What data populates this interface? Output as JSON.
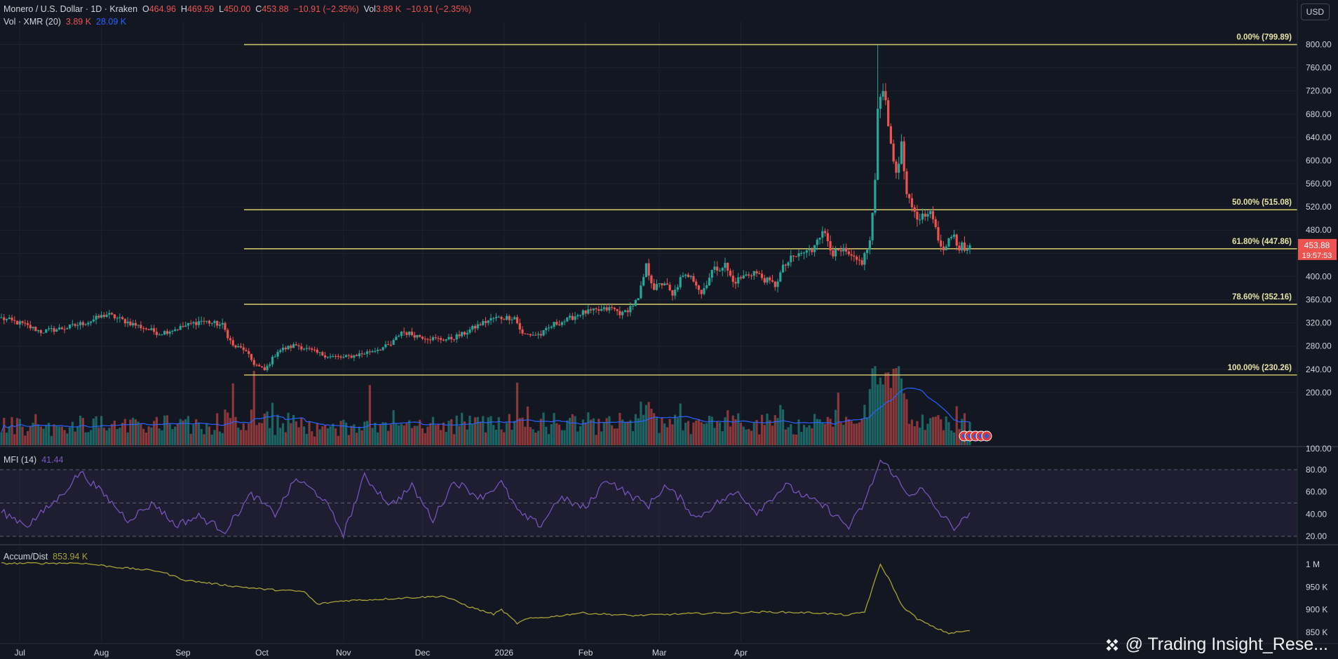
{
  "header": {
    "symbol": "Monero / U.S. Dollar · 1D · Kraken",
    "o_label": "O",
    "o": "464.96",
    "h_label": "H",
    "h": "469.59",
    "l_label": "L",
    "l": "450.00",
    "c_label": "C",
    "c": "453.88",
    "change": "−10.91 (−2.35%)",
    "vol_label": "Vol",
    "vol": "3.89 K",
    "vol_change": "−10.91 (−2.35%)",
    "volume_line_label": "Vol · XMR (20)",
    "volume_value": "3.89 K",
    "volume_ma": "28.09 K"
  },
  "currency_button": "USD",
  "watermark": "@ Trading Insight_Rese...",
  "colors": {
    "bg": "#131722",
    "up": "#26a69a",
    "down": "#ef5350",
    "fib": "#c9c06a",
    "mfi": "#7e57c2",
    "ad": "#a8a236",
    "vol_ma": "#2962ff"
  },
  "price_badge": {
    "value": "453.88",
    "timer": "19:57:53"
  },
  "chart_data": [
    {
      "type": "candlestick",
      "title": "Monero / U.S. Dollar · 1D · Kraken",
      "ylim": [
        180,
        810
      ],
      "y_ticks": [
        "800.00",
        "760.00",
        "720.00",
        "680.00",
        "640.00",
        "600.00",
        "560.00",
        "520.00",
        "480.00",
        "440.00",
        "400.00",
        "360.00",
        "320.00",
        "280.00",
        "240.00",
        "200.00"
      ],
      "x_ticks": [
        "Jul",
        "Aug",
        "Sep",
        "Oct",
        "Nov",
        "Dec",
        "2026",
        "Feb",
        "Mar",
        "Apr"
      ],
      "fibonacci": [
        {
          "label": "0.00% (799.89)",
          "value": 799.89
        },
        {
          "label": "50.00% (515.08)",
          "value": 515.08
        },
        {
          "label": "61.80% (447.86)",
          "value": 447.86
        },
        {
          "label": "78.60% (352.16)",
          "value": 352.16
        },
        {
          "label": "100.00% (230.26)",
          "value": 230.26
        }
      ],
      "close_path_anchors": [
        [
          0,
          328
        ],
        [
          8,
          318
        ],
        [
          15,
          305
        ],
        [
          25,
          312
        ],
        [
          33,
          322
        ],
        [
          40,
          335
        ],
        [
          50,
          318
        ],
        [
          60,
          302
        ],
        [
          68,
          312
        ],
        [
          76,
          324
        ],
        [
          84,
          316
        ],
        [
          88,
          280
        ],
        [
          92,
          275
        ],
        [
          96,
          250
        ],
        [
          100,
          238
        ],
        [
          105,
          272
        ],
        [
          112,
          282
        ],
        [
          120,
          268
        ],
        [
          125,
          262
        ],
        [
          130,
          260
        ],
        [
          138,
          268
        ],
        [
          148,
          282
        ],
        [
          152,
          305
        ],
        [
          158,
          298
        ],
        [
          165,
          292
        ],
        [
          170,
          292
        ],
        [
          175,
          300
        ],
        [
          182,
          318
        ],
        [
          187,
          328
        ],
        [
          195,
          330
        ],
        [
          198,
          300
        ],
        [
          205,
          300
        ],
        [
          210,
          318
        ],
        [
          215,
          325
        ],
        [
          220,
          337
        ],
        [
          225,
          340
        ],
        [
          232,
          345
        ],
        [
          236,
          335
        ],
        [
          242,
          360
        ],
        [
          245,
          418
        ],
        [
          248,
          380
        ],
        [
          252,
          390
        ],
        [
          255,
          365
        ],
        [
          258,
          395
        ],
        [
          262,
          405
        ],
        [
          266,
          370
        ],
        [
          270,
          410
        ],
        [
          275,
          420
        ],
        [
          278,
          390
        ],
        [
          282,
          400
        ],
        [
          286,
          408
        ],
        [
          290,
          395
        ],
        [
          294,
          385
        ],
        [
          297,
          415
        ],
        [
          300,
          430
        ],
        [
          304,
          440
        ],
        [
          308,
          445
        ],
        [
          310,
          470
        ],
        [
          313,
          475
        ],
        [
          316,
          440
        ],
        [
          320,
          443
        ],
        [
          324,
          428
        ],
        [
          327,
          425
        ],
        [
          330,
          460
        ],
        [
          332,
          560
        ],
        [
          333,
          690
        ],
        [
          334,
          720
        ],
        [
          336,
          712
        ],
        [
          338,
          620
        ],
        [
          340,
          580
        ],
        [
          342,
          625
        ],
        [
          344,
          540
        ],
        [
          346,
          515
        ],
        [
          348,
          500
        ],
        [
          350,
          505
        ],
        [
          352,
          515
        ],
        [
          354,
          500
        ],
        [
          356,
          460
        ],
        [
          358,
          450
        ],
        [
          360,
          465
        ],
        [
          362,
          470
        ],
        [
          364,
          448
        ],
        [
          365,
          462
        ],
        [
          366,
          450
        ],
        [
          368,
          454
        ]
      ],
      "last_close": 453.88,
      "volume_ma_length": 20
    },
    {
      "type": "line",
      "name": "MFI (14)",
      "current_value": "41.44",
      "ylim": [
        15,
        95
      ],
      "y_ticks": [
        "80.00",
        "60.00",
        "40.00",
        "20.00"
      ],
      "guides": [
        80,
        50,
        20
      ]
    },
    {
      "type": "line",
      "name": "Accum/Dist",
      "current_value": "853.94 K",
      "ylim": [
        835,
        1020
      ],
      "y_ticks": [
        "1 M",
        "950 K",
        "900 K",
        "850 K"
      ],
      "y_tick_values": [
        1000,
        950,
        900,
        850
      ]
    }
  ]
}
